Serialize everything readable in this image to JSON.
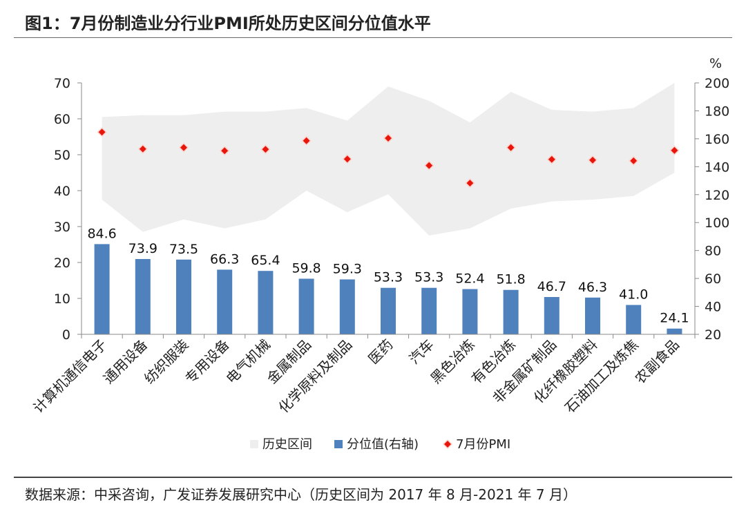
{
  "title": "图1：7月份制造业分行业PMI所处历史区间分位值水平",
  "source": "数据来源：中采咨询，广发证券发展研究中心（历史区间为 2017 年 8 月-2021 年 7 月）",
  "chart_data": {
    "type": "bar",
    "categories": [
      "计算机通信电子",
      "通用设备",
      "纺织服装",
      "专用设备",
      "电气机械",
      "金属制品",
      "化学原料及制品",
      "医药",
      "汽车",
      "黑色冶炼",
      "有色冶炼",
      "非金属矿制品",
      "化纤橡胶塑料",
      "石油加工及炼焦",
      "农副食品"
    ],
    "series": [
      {
        "name": "历史区间",
        "kind": "area-range",
        "axis": "left",
        "low": [
          37.5,
          28.5,
          32,
          29.5,
          32,
          40,
          34,
          39,
          27.5,
          29.5,
          35,
          37,
          37.5,
          38.5,
          45
        ],
        "high": [
          60.5,
          61,
          61,
          62,
          62,
          63,
          59.5,
          69,
          65,
          59,
          67.5,
          62.5,
          62,
          63,
          70
        ]
      },
      {
        "name": "分位值(右轴)",
        "kind": "bar",
        "axis": "right",
        "values": [
          84.6,
          73.9,
          73.5,
          66.3,
          65.4,
          59.8,
          59.3,
          53.3,
          53.3,
          52.4,
          51.8,
          46.7,
          46.3,
          41.0,
          24.1
        ]
      },
      {
        "name": "7月份PMI",
        "kind": "scatter",
        "axis": "left",
        "values": [
          56.3,
          51.6,
          52.0,
          51.1,
          51.5,
          53.9,
          48.8,
          54.6,
          47.0,
          42.1,
          52.0,
          48.7,
          48.5,
          48.3,
          51.2
        ]
      }
    ],
    "y_left": {
      "min": 0,
      "max": 70,
      "ticks": [
        0,
        10,
        20,
        30,
        40,
        50,
        60,
        70
      ]
    },
    "y_right": {
      "unit": "%",
      "min": 20,
      "max": 200,
      "ticks": [
        20,
        40,
        60,
        80,
        100,
        120,
        140,
        160,
        180,
        200
      ]
    },
    "colors": {
      "band": "#eeeeee",
      "bar": "#4f81bd",
      "marker_fill": "#e8150d",
      "marker_stroke": "#e8150d"
    },
    "legend": {
      "position": "bottom",
      "items": [
        {
          "label": "历史区间"
        },
        {
          "label": "分位值(右轴)"
        },
        {
          "label": "7月份PMI"
        }
      ]
    }
  }
}
